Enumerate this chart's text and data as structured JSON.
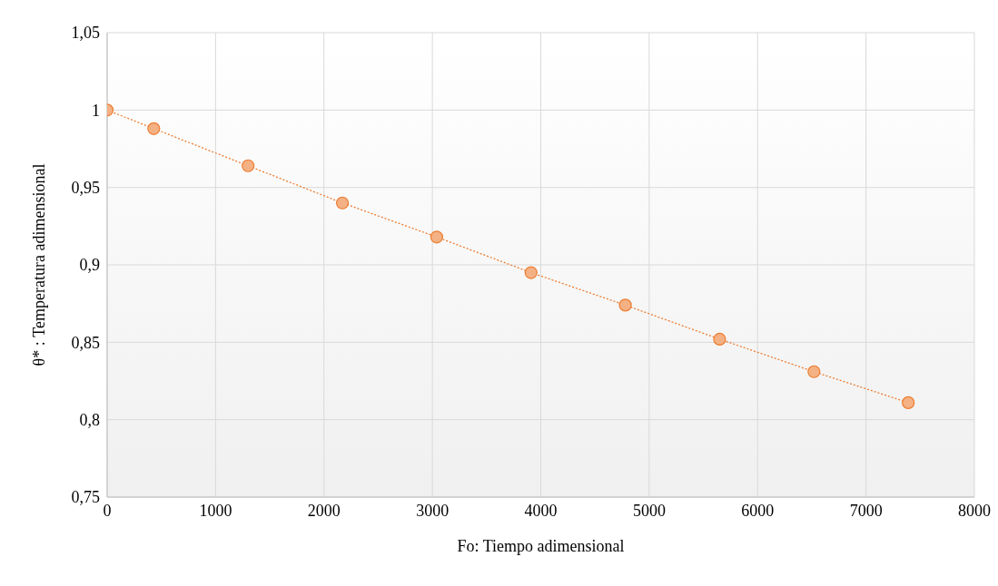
{
  "chart_data": {
    "type": "line",
    "xlabel": "Fo: Tiempo adimensional",
    "ylabel": "θ* : Temperatura adimensional",
    "x": [
      0,
      430,
      1300,
      2170,
      3040,
      3910,
      4780,
      5650,
      6520,
      7390
    ],
    "series": [
      {
        "color": "#ed7d31",
        "values": [
          1.0,
          0.988,
          0.964,
          0.94,
          0.918,
          0.895,
          0.874,
          0.852,
          0.831,
          0.811
        ]
      }
    ],
    "xlim": [
      0,
      8000
    ],
    "xticks": [
      0,
      1000,
      2000,
      3000,
      4000,
      5000,
      6000,
      7000,
      8000
    ],
    "ylim": [
      0.75,
      1.05
    ],
    "yticks": [
      {
        "value": 0.75,
        "label": "0,75"
      },
      {
        "value": 0.8,
        "label": "0,8"
      },
      {
        "value": 0.85,
        "label": "0,85"
      },
      {
        "value": 0.9,
        "label": "0,9"
      },
      {
        "value": 0.95,
        "label": "0,95"
      },
      {
        "value": 1,
        "label": "1"
      },
      {
        "value": 1.05,
        "label": "1,05"
      }
    ],
    "grid": true,
    "marker": "circle",
    "line_style": "dotted",
    "legend": false
  }
}
